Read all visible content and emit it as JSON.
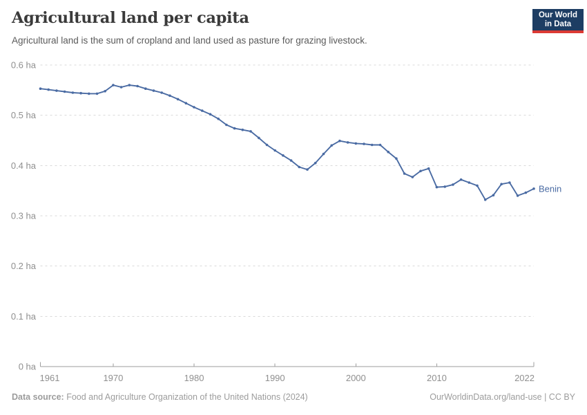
{
  "header": {
    "title": "Agricultural land per capita",
    "subtitle": "Agricultural land is the sum of cropland and land used as pasture for grazing livestock.",
    "logo": {
      "line1": "Our World",
      "line2": "in Data",
      "bg_color": "#1d3d63",
      "accent_color": "#dc3a34"
    }
  },
  "chart_data": {
    "type": "line",
    "title": "Agricultural land per capita",
    "unit": "ha",
    "xlabel": "",
    "ylabel": "",
    "grid": "horizontal-dashed",
    "legend_position": "end-of-line-label",
    "xlim": [
      1961,
      2022
    ],
    "ylim": [
      0,
      0.6
    ],
    "x": [
      1961,
      1962,
      1963,
      1964,
      1965,
      1966,
      1967,
      1968,
      1969,
      1970,
      1971,
      1972,
      1973,
      1974,
      1975,
      1976,
      1977,
      1978,
      1979,
      1980,
      1981,
      1982,
      1983,
      1984,
      1985,
      1986,
      1987,
      1988,
      1989,
      1990,
      1991,
      1992,
      1993,
      1994,
      1995,
      1996,
      1997,
      1998,
      1999,
      2000,
      2001,
      2002,
      2003,
      2004,
      2005,
      2006,
      2007,
      2008,
      2009,
      2010,
      2011,
      2012,
      2013,
      2014,
      2015,
      2016,
      2017,
      2018,
      2019,
      2020,
      2021,
      2022
    ],
    "series": [
      {
        "name": "Benin",
        "color": "#4a6ba3",
        "values": [
          0.553,
          0.551,
          0.549,
          0.547,
          0.545,
          0.544,
          0.543,
          0.543,
          0.548,
          0.56,
          0.556,
          0.56,
          0.558,
          0.553,
          0.549,
          0.545,
          0.539,
          0.532,
          0.524,
          0.516,
          0.509,
          0.502,
          0.493,
          0.481,
          0.474,
          0.471,
          0.468,
          0.455,
          0.441,
          0.43,
          0.42,
          0.41,
          0.397,
          0.392,
          0.405,
          0.423,
          0.44,
          0.449,
          0.446,
          0.444,
          0.443,
          0.441,
          0.441,
          0.427,
          0.414,
          0.384,
          0.377,
          0.389,
          0.394,
          0.357,
          0.358,
          0.362,
          0.372,
          0.366,
          0.36,
          0.332,
          0.341,
          0.363,
          0.366,
          0.34,
          0.346,
          0.354
        ]
      }
    ],
    "yticks": [
      {
        "value": 0,
        "label": "0 ha"
      },
      {
        "value": 0.1,
        "label": "0.1 ha"
      },
      {
        "value": 0.2,
        "label": "0.2 ha"
      },
      {
        "value": 0.3,
        "label": "0.3 ha"
      },
      {
        "value": 0.4,
        "label": "0.4 ha"
      },
      {
        "value": 0.5,
        "label": "0.5 ha"
      },
      {
        "value": 0.6,
        "label": "0.6 ha"
      }
    ],
    "xticks": [
      {
        "value": 1961,
        "label": "1961",
        "align": "start"
      },
      {
        "value": 1970,
        "label": "1970",
        "align": "middle"
      },
      {
        "value": 1980,
        "label": "1980",
        "align": "middle"
      },
      {
        "value": 1990,
        "label": "1990",
        "align": "middle"
      },
      {
        "value": 2000,
        "label": "2000",
        "align": "middle"
      },
      {
        "value": 2010,
        "label": "2010",
        "align": "middle"
      },
      {
        "value": 2022,
        "label": "2022",
        "align": "end"
      }
    ]
  },
  "footer": {
    "source_label": "Data source:",
    "source_text": " Food and Agriculture Organization of the United Nations (2024)",
    "rights": "OurWorldinData.org/land-use | CC BY"
  },
  "colors": {
    "line": "#4a6ba3",
    "gridline": "#d9d9d9",
    "axis": "#9e9e9e",
    "tick_text": "#8f8f8f",
    "title_text": "#3a3a3a",
    "subtitle_text": "#5a5a5a",
    "footer_text": "#9c9c9c"
  }
}
